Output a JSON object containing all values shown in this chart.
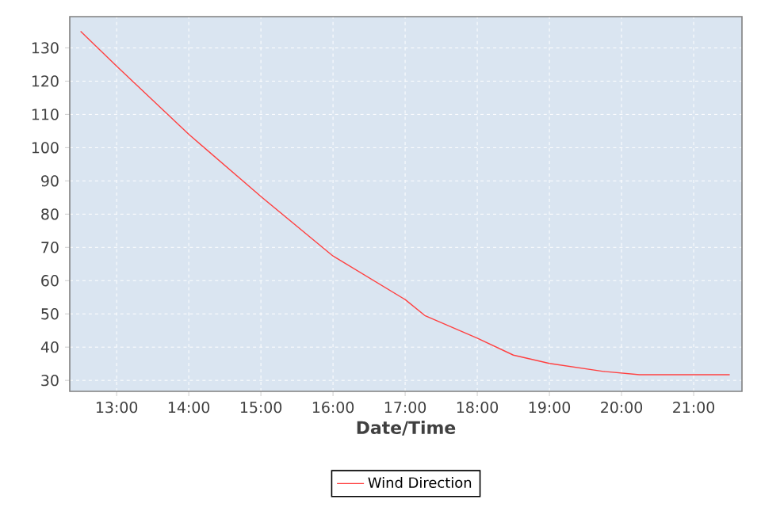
{
  "chart_data": {
    "type": "line",
    "xlabel": "Date/Time",
    "x": [
      12.5,
      13.0,
      14.0,
      15.0,
      16.0,
      17.0,
      17.28,
      18.0,
      18.5,
      19.0,
      19.75,
      20.25,
      21.5
    ],
    "series": [
      {
        "name": "Wind Direction",
        "color": "#ff4040",
        "values": [
          135,
          124.5,
          104,
          85.3,
          67.4,
          54.3,
          49.4,
          42.7,
          37.6,
          35.1,
          32.7,
          31.7,
          31.7
        ]
      }
    ],
    "xlim": [
      12.35,
      21.67
    ],
    "ylim": [
      26.7,
      139.4
    ],
    "xticks": [
      {
        "value": 13,
        "label": "13:00"
      },
      {
        "value": 14,
        "label": "14:00"
      },
      {
        "value": 15,
        "label": "15:00"
      },
      {
        "value": 16,
        "label": "16:00"
      },
      {
        "value": 17,
        "label": "17:00"
      },
      {
        "value": 18,
        "label": "18:00"
      },
      {
        "value": 19,
        "label": "19:00"
      },
      {
        "value": 20,
        "label": "20:00"
      },
      {
        "value": 21,
        "label": "21:00"
      }
    ],
    "yticks": [
      30,
      40,
      50,
      60,
      70,
      80,
      90,
      100,
      110,
      120,
      130
    ],
    "grid": true,
    "legend": "bottom"
  }
}
